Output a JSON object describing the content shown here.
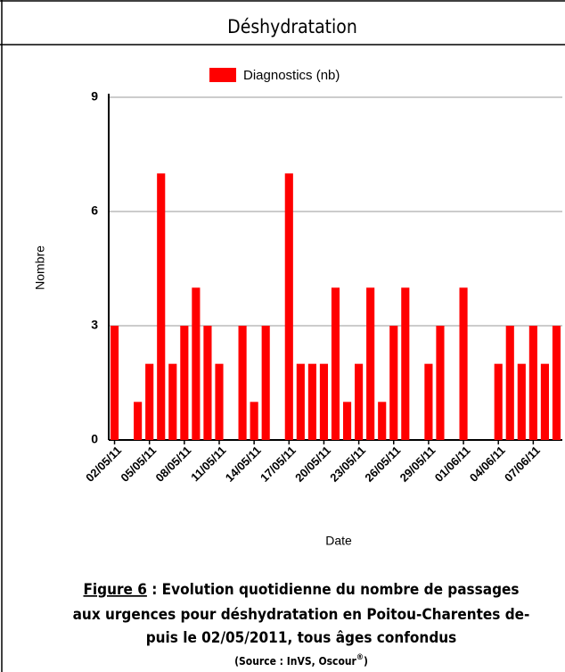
{
  "chart_data": {
    "type": "bar",
    "title": "Déshydratation",
    "x_label": "Date",
    "y_label": "Nombre",
    "categories": [
      "02/05/11",
      null,
      null,
      "05/05/11",
      null,
      null,
      "08/05/11",
      null,
      null,
      "11/05/11",
      null,
      null,
      "14/05/11",
      null,
      null,
      "17/05/11",
      null,
      null,
      "20/05/11",
      null,
      null,
      "23/05/11",
      null,
      null,
      "26/05/11",
      null,
      null,
      "29/05/11",
      null,
      null,
      "01/06/11",
      null,
      null,
      "04/06/11",
      null,
      null,
      "07/06/11",
      null,
      null
    ],
    "series": [
      {
        "name": "Diagnostics (nb)",
        "color": "#ff0000",
        "values": [
          3,
          0,
          1,
          2,
          7,
          2,
          3,
          4,
          3,
          2,
          0,
          3,
          1,
          3,
          0,
          7,
          2,
          2,
          2,
          4,
          1,
          2,
          4,
          1,
          3,
          4,
          0,
          2,
          3,
          0,
          4,
          0,
          0,
          2,
          3,
          2,
          3,
          2,
          3
        ]
      }
    ],
    "ylim": [
      0,
      9
    ],
    "yticks": [
      0,
      3,
      6,
      9
    ],
    "grid": true,
    "legend": "top"
  },
  "caption": {
    "figure_label": "Figure 6",
    "line1": " : Evolution quotidienne du nombre de passages",
    "line2": "aux urgences pour déshydratation en Poitou-Charentes de-",
    "line3": "puis le 02/05/2011, tous âges confondus",
    "source": "(Source : InVS, Oscour",
    "source_mark": "®",
    "source_end": ")"
  }
}
